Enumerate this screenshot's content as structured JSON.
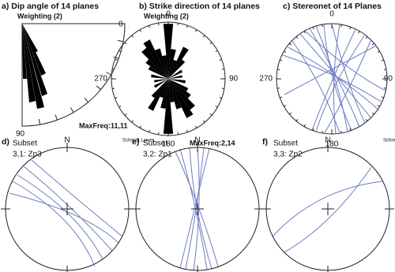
{
  "panels": [
    {
      "title": "a) Dip angle of 14 planes",
      "weighting": "Weighting (2)",
      "labels": [
        "0",
        "90"
      ],
      "max_freq": "MaxFreq:11,11"
    },
    {
      "title": "b) Strike direction of 14 planes",
      "weighting": "Weighting (2)",
      "labels": [
        "0",
        "90",
        "180",
        "270"
      ],
      "max_freq": "MaxFreq:2,14"
    },
    {
      "title": "c) Stereonet of 14 Planes",
      "labels": [
        "0",
        "90",
        "180",
        "270"
      ]
    },
    {
      "letter": "d)",
      "subset": "Subset",
      "name": "3,1: Zp3",
      "north": "N",
      "projection": "Schmidt Lower"
    },
    {
      "letter": "e)",
      "subset": "Subset",
      "name": "3,2: Zp1",
      "north": "N"
    },
    {
      "letter": "f)",
      "subset": "Subset",
      "name": "3,3: Zp2",
      "north": "N",
      "projection": "Schmidt Lower"
    }
  ]
}
